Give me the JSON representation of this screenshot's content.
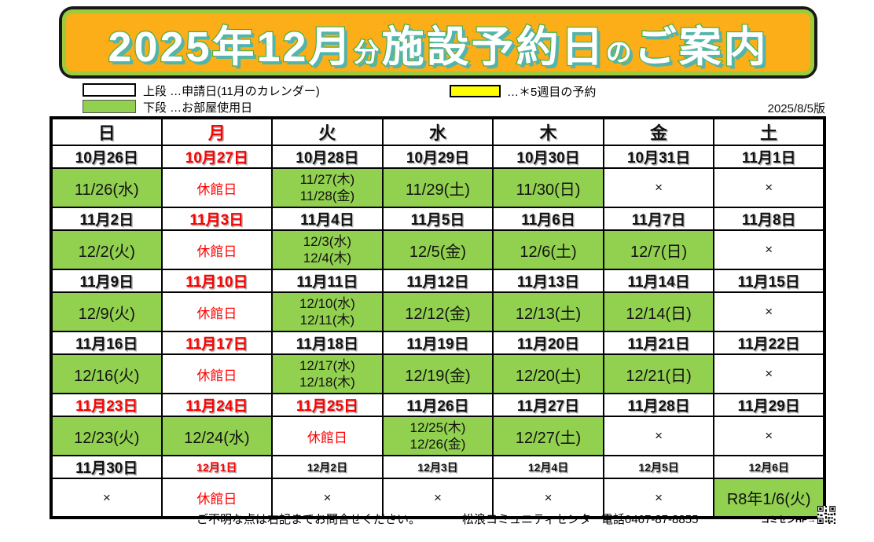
{
  "title_parts": [
    {
      "text": "2025年12月",
      "size": "big"
    },
    {
      "text": "分",
      "size": "sm"
    },
    {
      "text": "施設予約日",
      "size": "big"
    },
    {
      "text": "の",
      "size": "sm"
    },
    {
      "text": "ご案内",
      "size": "big"
    }
  ],
  "legend": {
    "upper_label": "上段 …申請日(11月のカレンダー)",
    "lower_label": "下段 …お部屋使用日",
    "fifth_week_label": "…＊5週目の予約",
    "version": "2025/8/5版"
  },
  "colors": {
    "banner_orange": "#FBAE17",
    "banner_frame_green": "#9CCB3D",
    "title_stroke_green": "#3FAE49",
    "title_shadow_teal": "#52B5AA",
    "usage_cell_green": "#92D050",
    "fifth_week_yellow": "#FFFF00",
    "holiday_red": "#FF0000"
  },
  "calendar": {
    "weekdays": [
      {
        "label": "日",
        "red": false
      },
      {
        "label": "月",
        "red": true
      },
      {
        "label": "火",
        "red": false
      },
      {
        "label": "水",
        "red": false
      },
      {
        "label": "木",
        "red": false
      },
      {
        "label": "金",
        "red": false
      },
      {
        "label": "土",
        "red": false
      }
    ],
    "weeks": [
      {
        "application": [
          {
            "text": "10月26日"
          },
          {
            "text": "10月27日",
            "red": true
          },
          {
            "text": "10月28日"
          },
          {
            "text": "10月29日"
          },
          {
            "text": "10月30日"
          },
          {
            "text": "10月31日"
          },
          {
            "text": "11月1日"
          }
        ],
        "usage": [
          {
            "lines": [
              "11/26(水)"
            ],
            "green": true
          },
          {
            "lines": [
              "休館日"
            ],
            "red": true
          },
          {
            "lines": [
              "11/27(木)",
              "11/28(金)"
            ],
            "green": true
          },
          {
            "lines": [
              "11/29(土)"
            ],
            "green": true
          },
          {
            "lines": [
              "11/30(日)"
            ],
            "green": true
          },
          {
            "lines": [
              "×"
            ]
          },
          {
            "lines": [
              "×"
            ]
          }
        ]
      },
      {
        "application": [
          {
            "text": "11月2日"
          },
          {
            "text": "11月3日",
            "red": true
          },
          {
            "text": "11月4日"
          },
          {
            "text": "11月5日"
          },
          {
            "text": "11月6日"
          },
          {
            "text": "11月7日"
          },
          {
            "text": "11月8日"
          }
        ],
        "usage": [
          {
            "lines": [
              "12/2(火)"
            ],
            "green": true
          },
          {
            "lines": [
              "休館日"
            ],
            "red": true
          },
          {
            "lines": [
              "12/3(水)",
              "12/4(木)"
            ],
            "green": true
          },
          {
            "lines": [
              "12/5(金)"
            ],
            "green": true
          },
          {
            "lines": [
              "12/6(土)"
            ],
            "green": true
          },
          {
            "lines": [
              "12/7(日)"
            ],
            "green": true
          },
          {
            "lines": [
              "×"
            ]
          }
        ]
      },
      {
        "application": [
          {
            "text": "11月9日"
          },
          {
            "text": "11月10日",
            "red": true
          },
          {
            "text": "11月11日"
          },
          {
            "text": "11月12日"
          },
          {
            "text": "11月13日"
          },
          {
            "text": "11月14日"
          },
          {
            "text": "11月15日"
          }
        ],
        "usage": [
          {
            "lines": [
              "12/9(火)"
            ],
            "green": true
          },
          {
            "lines": [
              "休館日"
            ],
            "red": true
          },
          {
            "lines": [
              "12/10(水)",
              "12/11(木)"
            ],
            "green": true
          },
          {
            "lines": [
              "12/12(金)"
            ],
            "green": true
          },
          {
            "lines": [
              "12/13(土)"
            ],
            "green": true
          },
          {
            "lines": [
              "12/14(日)"
            ],
            "green": true
          },
          {
            "lines": [
              "×"
            ]
          }
        ]
      },
      {
        "application": [
          {
            "text": "11月16日"
          },
          {
            "text": "11月17日",
            "red": true
          },
          {
            "text": "11月18日"
          },
          {
            "text": "11月19日"
          },
          {
            "text": "11月20日"
          },
          {
            "text": "11月21日"
          },
          {
            "text": "11月22日"
          }
        ],
        "usage": [
          {
            "lines": [
              "12/16(火)"
            ],
            "green": true
          },
          {
            "lines": [
              "休館日"
            ],
            "red": true
          },
          {
            "lines": [
              "12/17(水)",
              "12/18(木)"
            ],
            "green": true
          },
          {
            "lines": [
              "12/19(金)"
            ],
            "green": true
          },
          {
            "lines": [
              "12/20(土)"
            ],
            "green": true
          },
          {
            "lines": [
              "12/21(日)"
            ],
            "green": true
          },
          {
            "lines": [
              "×"
            ]
          }
        ]
      },
      {
        "application": [
          {
            "text": "11月23日",
            "red": true
          },
          {
            "text": "11月24日",
            "red": true
          },
          {
            "text": "11月25日",
            "red": true
          },
          {
            "text": "11月26日"
          },
          {
            "text": "11月27日"
          },
          {
            "text": "11月28日"
          },
          {
            "text": "11月29日"
          }
        ],
        "usage": [
          {
            "lines": [
              "12/23(火)"
            ],
            "green": true
          },
          {
            "lines": [
              "12/24(水)"
            ],
            "green": true
          },
          {
            "lines": [
              "休館日"
            ],
            "red": true
          },
          {
            "lines": [
              "12/25(木)",
              "12/26(金)"
            ],
            "green": true
          },
          {
            "lines": [
              "12/27(土)"
            ],
            "green": true
          },
          {
            "lines": [
              "×"
            ]
          },
          {
            "lines": [
              "×"
            ]
          }
        ]
      },
      {
        "application": [
          {
            "text": "11月30日"
          },
          {
            "text": "12月1日",
            "red": true,
            "small": true
          },
          {
            "text": "12月2日",
            "small": true
          },
          {
            "text": "12月3日",
            "small": true
          },
          {
            "text": "12月4日",
            "small": true
          },
          {
            "text": "12月5日",
            "small": true
          },
          {
            "text": "12月6日",
            "small": true
          }
        ],
        "usage": [
          {
            "lines": [
              "×"
            ]
          },
          {
            "lines": [
              "休館日"
            ],
            "red": true
          },
          {
            "lines": [
              "×"
            ]
          },
          {
            "lines": [
              "×"
            ]
          },
          {
            "lines": [
              "×"
            ]
          },
          {
            "lines": [
              "×"
            ]
          },
          {
            "lines": [
              "R8年1/6(火)"
            ],
            "green": true
          }
        ]
      }
    ]
  },
  "footer": {
    "contact_note": "ご不明な点は右記までお問合せください。",
    "center_name": "松浪コミュニティセンター",
    "phone": "電話0467-87-8855",
    "hp_label": "コミセンHP→"
  }
}
